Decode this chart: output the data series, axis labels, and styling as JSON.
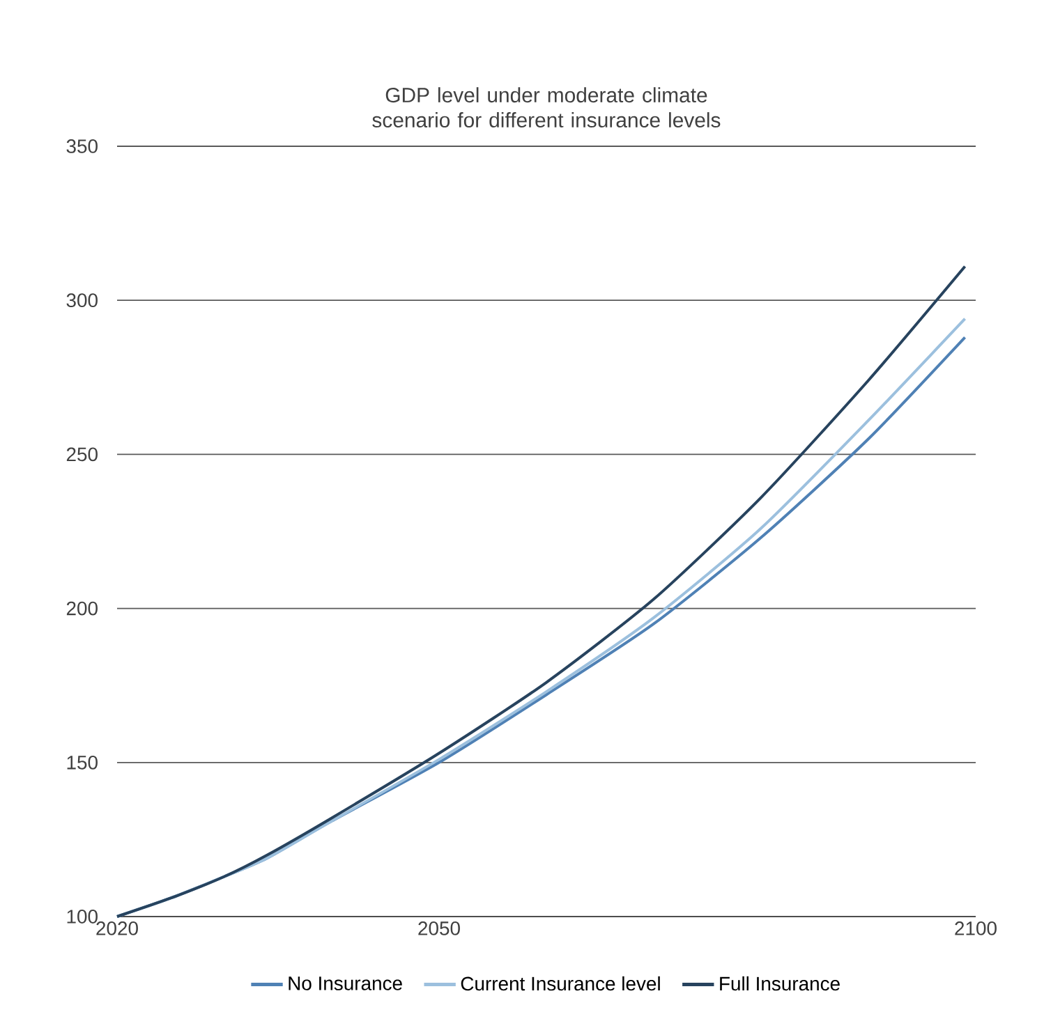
{
  "chart_data": {
    "type": "line",
    "title": "GDP level under moderate climate scenario for different insurance levels",
    "x": [
      2020,
      2025,
      2030,
      2034,
      2040,
      2050,
      2060,
      2070,
      2080,
      2090,
      2099
    ],
    "series": [
      {
        "name": "No Insurance",
        "color": "#4f81b5",
        "values": [
          100,
          106,
          113,
          119,
          131,
          150,
          172,
          195,
          223,
          255,
          288
        ]
      },
      {
        "name": "Current Insurance level",
        "color": "#9cc0de",
        "values": [
          100,
          106,
          113,
          119,
          131,
          151,
          173,
          197,
          226,
          261,
          294
        ]
      },
      {
        "name": "Full Insurance",
        "color": "#27435e",
        "values": [
          100,
          106,
          113,
          120,
          132,
          153,
          176,
          203,
          236,
          274,
          311
        ]
      }
    ],
    "xlim": [
      2020,
      2100
    ],
    "xticks": [
      2020,
      2050,
      2100
    ],
    "ylim": [
      100,
      350
    ],
    "yticks": [
      100,
      150,
      200,
      250,
      300,
      350
    ],
    "grid": "y",
    "legend": "bottom",
    "marker": "none",
    "line_style": "solid"
  }
}
